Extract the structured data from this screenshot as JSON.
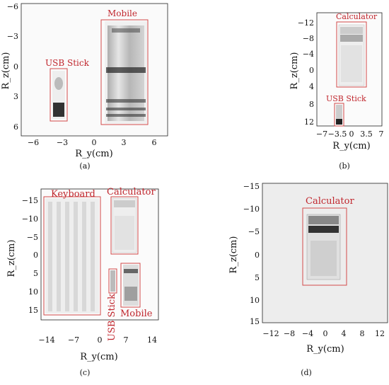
{
  "panels": [
    {
      "caption": "(a)",
      "xlabel": "R_y(cm)",
      "ylabel": "R_z(cm)",
      "xticks": [
        "−6",
        "−3",
        "0",
        "3",
        "6"
      ],
      "yticks": [
        "−6",
        "−3",
        "0",
        "3",
        "6"
      ],
      "objects": [
        {
          "label": "Mobile"
        },
        {
          "label": "USB Stick"
        }
      ]
    },
    {
      "caption": "(b)",
      "xlabel": "R_y(cm)",
      "ylabel": "R_z(cm)",
      "xticks": [
        "−7",
        "−3.5",
        "0",
        "3.5",
        "7"
      ],
      "yticks": [
        "−12",
        "−8",
        "−4",
        "0",
        "4",
        "8",
        "12"
      ],
      "objects": [
        {
          "label": "Calculator"
        },
        {
          "label": "USB Stick"
        }
      ]
    },
    {
      "caption": "(c)",
      "xlabel": "R_y(cm)",
      "ylabel": "R_z(cm)",
      "xticks": [
        "−14",
        "−7",
        "0",
        "7",
        "14"
      ],
      "yticks": [
        "−15",
        "−10",
        "−5",
        "0",
        "5",
        "10",
        "15"
      ],
      "objects": [
        {
          "label": "Keyboard"
        },
        {
          "label": "Calculator"
        },
        {
          "label": "USB Stick"
        },
        {
          "label": "Mobile"
        }
      ]
    },
    {
      "caption": "(d)",
      "xlabel": "R_y(cm)",
      "ylabel": "R_z(cm)",
      "xticks": [
        "−12",
        "−8",
        "−4",
        "0",
        "4",
        "8",
        "12"
      ],
      "yticks": [
        "−15",
        "−10",
        "−5",
        "0",
        "5",
        "10",
        "15"
      ],
      "objects": [
        {
          "label": "Calculator"
        }
      ]
    }
  ]
}
